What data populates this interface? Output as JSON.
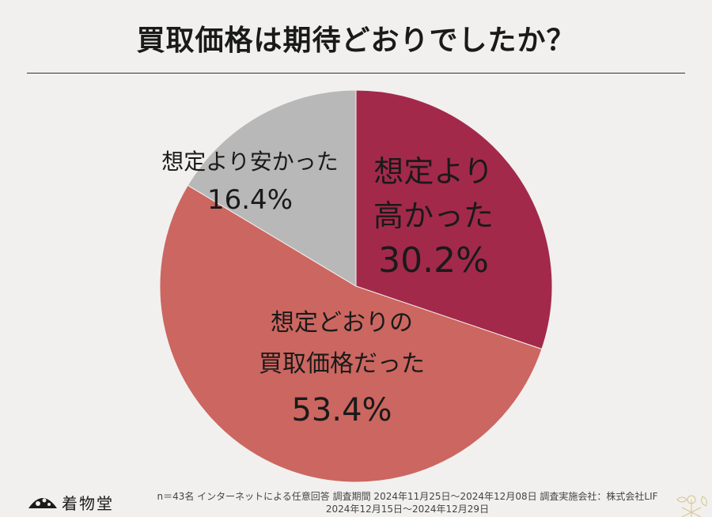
{
  "title": "買取価格は期待どおりでしたか？",
  "chart_data": {
    "type": "pie",
    "title": "買取価格は期待どおりでしたか？",
    "slices": [
      {
        "label_lines": [
          "想定より",
          "高かった"
        ],
        "value": 30.2,
        "value_label": "30.2%",
        "color": "#a3294b"
      },
      {
        "label_lines": [
          "想定どおりの",
          "買取価格だった"
        ],
        "value": 53.4,
        "value_label": "53.4%",
        "color": "#cc6660"
      },
      {
        "label_lines": [
          "想定より安かった"
        ],
        "value": 16.4,
        "value_label": "16.4%",
        "color": "#b8b8b8"
      }
    ]
  },
  "footer": {
    "line1": "n＝43名 インターネットによる任意回答 調査期間 2024年11月25日～2024年12月08日 調査実施会社：株式会社LIF",
    "line2": "2024年12月15日～2024年12月29日"
  },
  "logo": {
    "text": "着物堂",
    "icon": "fan-logo-icon"
  },
  "decoration": {
    "icon": "gold-flower-pattern-icon"
  }
}
